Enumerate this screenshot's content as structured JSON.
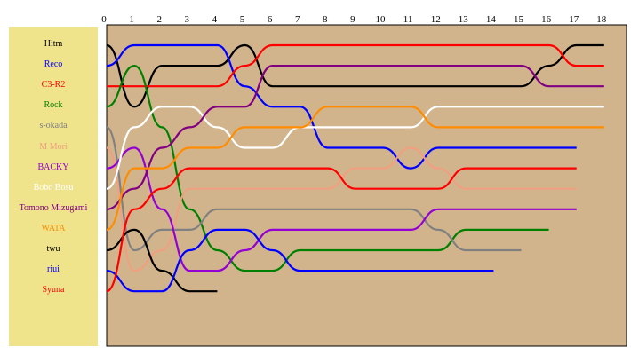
{
  "chart_data": {
    "type": "line",
    "x": [
      0,
      1,
      2,
      3,
      4,
      5,
      6,
      7,
      8,
      9,
      10,
      11,
      12,
      13,
      14,
      15,
      16,
      17,
      18
    ],
    "xlim": [
      0,
      18
    ],
    "ylim": [
      1,
      13
    ],
    "y_inverted": true,
    "grid": false,
    "legend_position": "left",
    "series": [
      {
        "name": "Hitm",
        "color": "#000000",
        "values": [
          1,
          4,
          2,
          2,
          2,
          1,
          3,
          3,
          3,
          3,
          3,
          3,
          3,
          3,
          3,
          3,
          2,
          1,
          1
        ]
      },
      {
        "name": "Reco",
        "color": "#0000ff",
        "values": [
          2,
          1,
          1,
          1,
          1,
          3,
          4,
          4,
          6,
          6,
          6,
          7,
          6,
          6,
          6,
          6,
          6,
          6,
          null
        ]
      },
      {
        "name": "C3-R2",
        "color": "#ff0000",
        "values": [
          3,
          3,
          3,
          3,
          3,
          2,
          1,
          1,
          1,
          1,
          1,
          1,
          1,
          1,
          1,
          1,
          1,
          2,
          2
        ]
      },
      {
        "name": "Rock",
        "color": "#008000",
        "values": [
          4,
          2,
          5,
          9,
          11,
          12,
          12,
          11,
          11,
          11,
          11,
          11,
          11,
          10,
          10,
          10,
          10,
          null,
          null
        ]
      },
      {
        "name": "s-okada",
        "color": "#808080",
        "values": [
          5,
          11,
          10,
          10,
          9,
          9,
          9,
          9,
          9,
          9,
          9,
          9,
          10,
          11,
          11,
          11,
          null,
          null,
          null
        ]
      },
      {
        "name": "M Mori",
        "color": "#f0a080",
        "values": [
          6,
          12,
          11,
          8,
          8,
          8,
          8,
          8,
          8,
          7,
          7,
          6,
          7,
          8,
          8,
          8,
          8,
          8,
          null
        ]
      },
      {
        "name": "BACKY",
        "color": "#9400d3",
        "values": [
          7,
          6,
          9,
          12,
          12,
          11,
          10,
          10,
          10,
          10,
          10,
          10,
          9,
          9,
          9,
          9,
          9,
          9,
          null
        ]
      },
      {
        "name": "Bobo Bosu",
        "color": "#ffffff",
        "values": [
          8,
          5,
          4,
          4,
          5,
          6,
          6,
          5,
          5,
          5,
          5,
          5,
          4,
          4,
          4,
          4,
          4,
          4,
          4
        ]
      },
      {
        "name": "Tomono Mizugami",
        "color": "#800080",
        "values": [
          9,
          8,
          6,
          5,
          4,
          4,
          2,
          2,
          2,
          2,
          2,
          2,
          2,
          2,
          2,
          2,
          3,
          3,
          3
        ]
      },
      {
        "name": "WATA",
        "color": "#ff8c00",
        "values": [
          10,
          7,
          7,
          6,
          6,
          5,
          5,
          5,
          4,
          4,
          4,
          4,
          5,
          5,
          5,
          5,
          5,
          5,
          5
        ]
      },
      {
        "name": "twu",
        "color": "#000000",
        "values": [
          11,
          10,
          12,
          13,
          13,
          null,
          null,
          null,
          null,
          null,
          null,
          null,
          null,
          null,
          null,
          null,
          null,
          null,
          null
        ]
      },
      {
        "name": "riui",
        "color": "#0000ff",
        "values": [
          12,
          13,
          13,
          11,
          10,
          10,
          11,
          12,
          12,
          12,
          12,
          12,
          12,
          12,
          12,
          null,
          null,
          null,
          null
        ]
      },
      {
        "name": "Syuna",
        "color": "#ff0000",
        "values": [
          13,
          9,
          8,
          7,
          7,
          7,
          7,
          7,
          7,
          8,
          8,
          8,
          8,
          7,
          7,
          7,
          7,
          7,
          null
        ]
      }
    ]
  }
}
